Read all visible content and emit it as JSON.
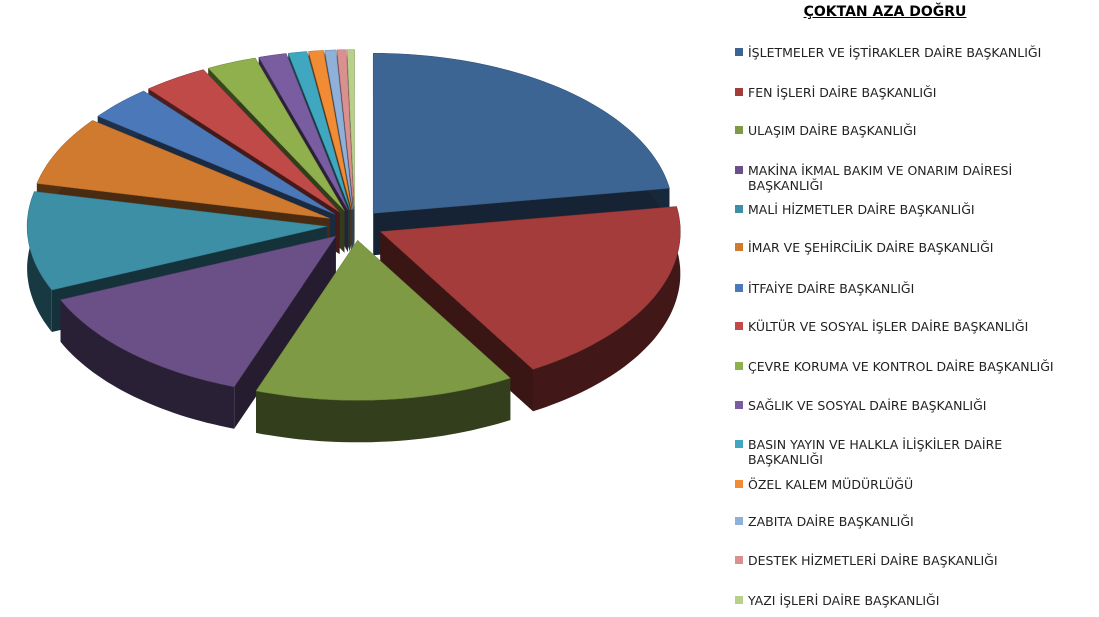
{
  "chart_data": {
    "type": "pie",
    "title": "ÇOKTAN AZA DOĞRU",
    "categories": [
      "İŞLETMELER VE İŞTİRAKLER DAİRE BAŞKANLIĞI",
      "FEN İŞLERİ DAİRE BAŞKANLIĞI",
      "ULAŞIM DAİRE BAŞKANLIĞI",
      "MAKİNA İKMAL BAKIM VE ONARIM DAİRESİ BAŞKANLIĞI",
      "MALİ HİZMETLER DAİRE BAŞKANLIĞI",
      "İMAR VE ŞEHİRCİLİK DAİRE BAŞKANLIĞI",
      "İTFAİYE DAİRE BAŞKANLIĞI",
      "KÜLTÜR VE SOSYAL İŞLER DAİRE BAŞKANLIĞI",
      "ÇEVRE KORUMA VE KONTROL DAİRE BAŞKANLIĞI",
      "SAĞLIK VE SOSYAL DAİRE BAŞKANLIĞI",
      "BASIN YAYIN VE HALKLA İLİŞKİLER DAİRE BAŞKANLIĞI",
      "ÖZEL KALEM MÜDÜRLÜĞÜ",
      "ZABITA DAİRE BAŞKANLIĞI",
      "DESTEK HİZMETLERİ DAİRE BAŞKANLIĞI",
      "YAZI İŞLERİ DAİRE BAŞKANLIĞI"
    ],
    "values": [
      22.5,
      19,
      14,
      13,
      10,
      7,
      3.5,
      3.5,
      2.7,
      1.5,
      1,
      0.8,
      0.6,
      0.5,
      0.4
    ],
    "colors": [
      "#3c6594",
      "#a33c3a",
      "#7f9a45",
      "#6a5087",
      "#3d8fa5",
      "#d07a30",
      "#4a78b8",
      "#c04a48",
      "#8fb04c",
      "#7a5ca0",
      "#3fa8c0",
      "#f28c34",
      "#8fb0d8",
      "#d9908e",
      "#b8d08c"
    ],
    "legend": "right"
  }
}
